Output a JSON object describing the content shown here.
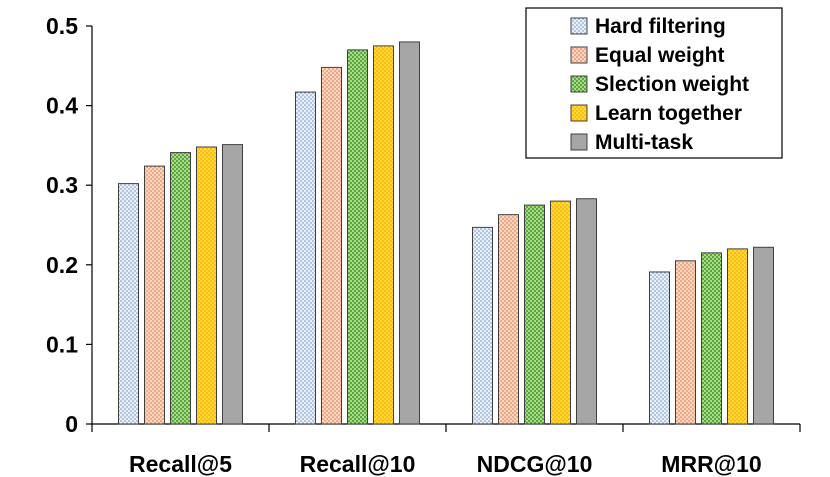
{
  "chart_data": {
    "type": "bar",
    "title": "",
    "xlabel": "",
    "ylabel": "",
    "ylim": [
      0,
      0.5
    ],
    "yticks": [
      0,
      0.1,
      0.2,
      0.3,
      0.4,
      0.5
    ],
    "ytick_labels": [
      "0",
      "0.1",
      "0.2",
      "0.3",
      "0.4",
      "0.5"
    ],
    "categories": [
      "Recall@5",
      "Recall@10",
      "NDCG@10",
      "MRR@10"
    ],
    "series": [
      {
        "name": "Hard filtering",
        "values": [
          0.302,
          0.417,
          0.247,
          0.191
        ],
        "color": "#dce6f2",
        "pattern": "dots-blue"
      },
      {
        "name": "Equal weight",
        "values": [
          0.324,
          0.448,
          0.263,
          0.205
        ],
        "color": "#f9c9ae",
        "pattern": "dots-orange"
      },
      {
        "name": "Slection weight",
        "values": [
          0.341,
          0.47,
          0.275,
          0.215
        ],
        "color": "#9bd27a",
        "pattern": "checker-green"
      },
      {
        "name": "Learn together",
        "values": [
          0.348,
          0.475,
          0.28,
          0.22
        ],
        "color": "#ffc000",
        "pattern": "dots-yellow"
      },
      {
        "name": "Multi-task",
        "values": [
          0.351,
          0.48,
          0.283,
          0.222
        ],
        "color": "#a6a6a6",
        "pattern": "solid"
      }
    ],
    "legend_position": "top-right",
    "grid": false
  }
}
